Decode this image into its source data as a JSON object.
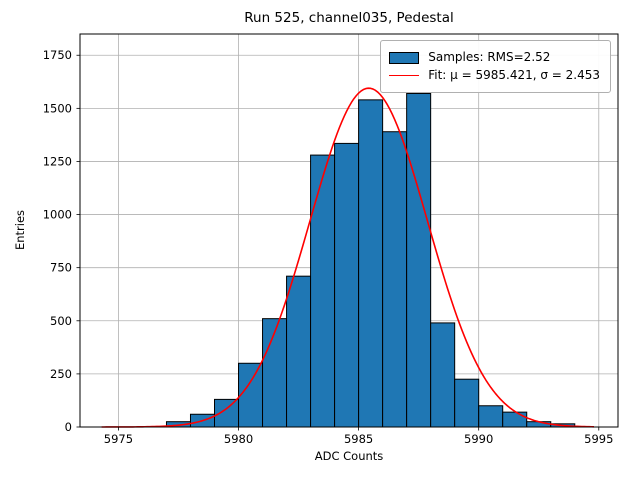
{
  "title": "Run 525, channel035, Pedestal",
  "chart_data": {
    "type": "bar",
    "subtype": "histogram",
    "title": "Run 525, channel035, Pedestal",
    "xlabel": "ADC Counts",
    "ylabel": "Entries",
    "xlim": [
      5973.4,
      5995.8
    ],
    "ylim": [
      0,
      1850
    ],
    "xticks": [
      5975,
      5980,
      5985,
      5990,
      5995
    ],
    "yticks": [
      0,
      250,
      500,
      750,
      1000,
      1250,
      1500,
      1750
    ],
    "grid": true,
    "grid_color": "#b0b0b0",
    "bar_color": "#1f77b4",
    "bar_edge_color": "#000000",
    "bin_edges": [
      5977,
      5978,
      5979,
      5980,
      5981,
      5982,
      5983,
      5984,
      5985,
      5986,
      5987,
      5988,
      5989,
      5990,
      5991,
      5992,
      5993,
      5994
    ],
    "values": [
      25,
      60,
      130,
      300,
      510,
      710,
      1280,
      1335,
      1540,
      1390,
      1570,
      490,
      225,
      100,
      70,
      25,
      15
    ],
    "fit": {
      "mu": 5985.421,
      "sigma": 2.453,
      "amplitude": 1595,
      "color": "#ff0000",
      "x_range": [
        5974.3,
        5994.8
      ]
    },
    "legend": [
      {
        "type": "patch",
        "color": "#1f77b4",
        "label": "Samples: RMS=2.52"
      },
      {
        "type": "line",
        "color": "#ff0000",
        "label": "Fit: μ = 5985.421, σ = 2.453"
      }
    ],
    "legend_position": "upper right"
  }
}
